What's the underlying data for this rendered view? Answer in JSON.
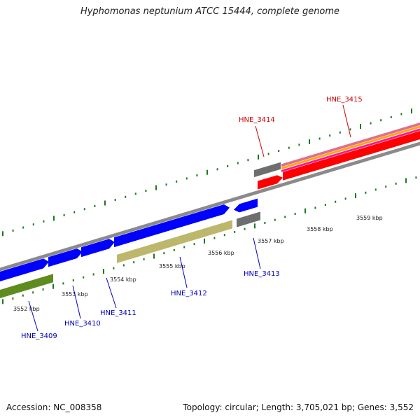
{
  "title": "Hyphomonas neptunium ATCC 15444, complete genome",
  "accession": "Accession: NC_008358",
  "topology": "Topology: circular; Length: 3,705,021 bp; Genes: 3,552",
  "ticks": [
    {
      "label": "3552 kbp"
    },
    {
      "label": "3553 kbp"
    },
    {
      "label": "3554 kbp"
    },
    {
      "label": "3555 kbp"
    },
    {
      "label": "3556 kbp"
    },
    {
      "label": "3557 kbp"
    },
    {
      "label": "3558 kbp"
    },
    {
      "label": "3559 kbp"
    }
  ],
  "genes": [
    {
      "id": "HNE_3409",
      "color": "#0000bb"
    },
    {
      "id": "HNE_3410",
      "color": "#0000bb"
    },
    {
      "id": "HNE_3411",
      "color": "#0000bb"
    },
    {
      "id": "HNE_3412",
      "color": "#0000bb"
    },
    {
      "id": "HNE_3413",
      "color": "#0000bb"
    },
    {
      "id": "HNE_3414",
      "color": "#cc0000"
    },
    {
      "id": "HNE_3415",
      "color": "#cc0000"
    }
  ],
  "colors": {
    "tick": "#1a7a1a",
    "backbone": "#8a8a8a",
    "cds_forward": "#0000ff",
    "cds_reverse_olive": "#5f8c1e",
    "cds_reverse_khaki": "#bdb76b",
    "gray_feature": "#6e6e6e",
    "red_feature": "#ff0000",
    "band_pink": "#e0708a",
    "band_orange": "#ffa500",
    "band_magenta": "#ff1493",
    "red_label": "#cc0000",
    "blue_label": "#0000bb"
  }
}
